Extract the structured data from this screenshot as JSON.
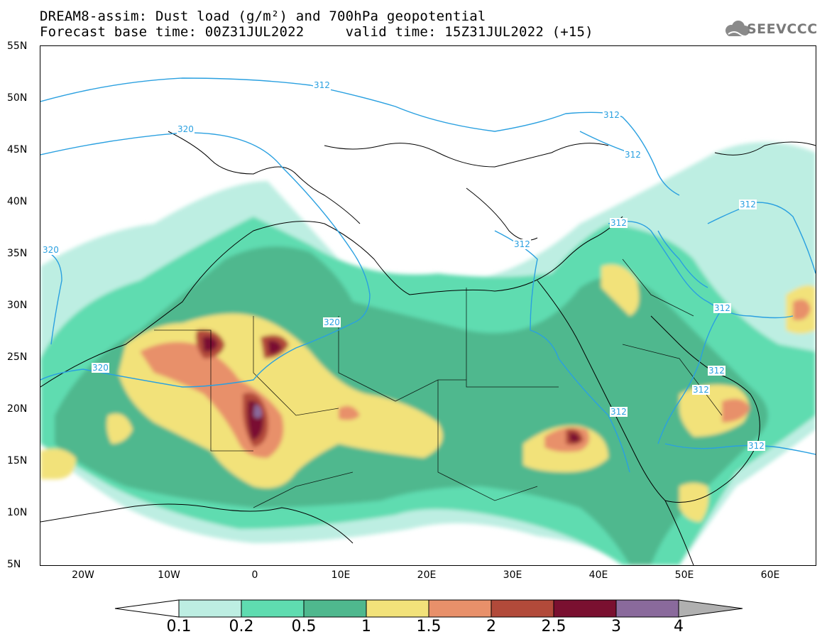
{
  "title": {
    "line1": "DREAM8-assim: Dust load (g/m²) and 700hPa geopotential",
    "line2": "Forecast base time: 00Z31JUL2022     valid time: 15Z31JUL2022 (+15)"
  },
  "logo": {
    "text": "SEEVCCC",
    "icon": "cloud-icon"
  },
  "map": {
    "lat_labels": [
      "55N",
      "50N",
      "45N",
      "40N",
      "35N",
      "30N",
      "25N",
      "20N",
      "15N",
      "10N",
      "5N"
    ],
    "lon_labels": [
      "20W",
      "10W",
      "0",
      "10E",
      "20E",
      "30E",
      "40E",
      "50E",
      "60E"
    ],
    "contour_labels": [
      "312",
      "320"
    ],
    "contour_color": "#2aa0e0"
  },
  "colorbar": {
    "labels": [
      "0.1",
      "0.2",
      "0.5",
      "1",
      "1.5",
      "2",
      "2.5",
      "3",
      "4"
    ],
    "colors": [
      "#ffffff",
      "#bdeee2",
      "#5fdcb0",
      "#4fb88e",
      "#f2e27a",
      "#e8906a",
      "#b24a3a",
      "#7a1030",
      "#8a6a9c",
      "#b0b0b0"
    ]
  }
}
